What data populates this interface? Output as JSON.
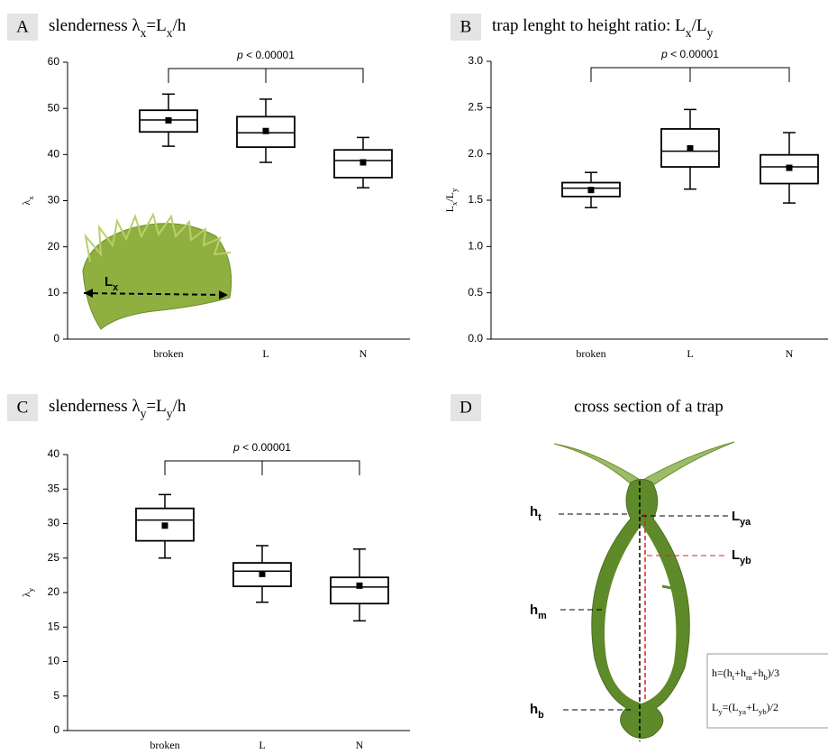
{
  "chart_data": [
    {
      "type": "box",
      "panel_label": "A",
      "title": [
        {
          "text": "slenderness λ"
        },
        {
          "text": "x",
          "sub": true
        },
        {
          "text": "=L"
        },
        {
          "text": "x",
          "sub": true
        },
        {
          "text": "/h"
        }
      ],
      "y_label": [
        {
          "text": "λ"
        },
        {
          "text": "x",
          "sub": true
        }
      ],
      "annotation": [
        {
          "text": "p",
          "italic": true
        },
        {
          "text": " < 0.00001"
        }
      ],
      "inset_label": [
        {
          "text": "L"
        },
        {
          "text": "x",
          "sub": true
        }
      ],
      "categories": [
        "broken",
        "L",
        "N"
      ],
      "boxes": [
        {
          "whisker_low": 41.8,
          "q1": 44.9,
          "median": 47.5,
          "q3": 49.6,
          "whisker_high": 53.1,
          "mean": 47.4
        },
        {
          "whisker_low": 38.3,
          "q1": 41.6,
          "median": 44.7,
          "q3": 48.2,
          "whisker_high": 52,
          "mean": 45.1
        },
        {
          "whisker_low": 32.8,
          "q1": 35,
          "median": 38.7,
          "q3": 41,
          "whisker_high": 43.7,
          "mean": 38.3
        }
      ],
      "color": "#000000",
      "ylim": [
        0,
        60
      ],
      "yticks": [
        0,
        10,
        20,
        30,
        40,
        50,
        60
      ]
    },
    {
      "type": "box",
      "panel_label": "B",
      "title": [
        {
          "text": "trap lenght to height ratio: L"
        },
        {
          "text": "x",
          "sub": true
        },
        {
          "text": "/L"
        },
        {
          "text": "y",
          "sub": true
        }
      ],
      "y_label": [
        {
          "text": "L"
        },
        {
          "text": "x",
          "sub": true
        },
        {
          "text": "/L"
        },
        {
          "text": "y",
          "sub": true
        }
      ],
      "annotation": [
        {
          "text": "p",
          "italic": true
        },
        {
          "text": " < 0.00001"
        }
      ],
      "categories": [
        "broken",
        "L",
        "N"
      ],
      "boxes": [
        {
          "whisker_low": 1.42,
          "q1": 1.54,
          "median": 1.63,
          "q3": 1.69,
          "whisker_high": 1.8,
          "mean": 1.61
        },
        {
          "whisker_low": 1.62,
          "q1": 1.86,
          "median": 2.03,
          "q3": 2.27,
          "whisker_high": 2.48,
          "mean": 2.06
        },
        {
          "whisker_low": 1.47,
          "q1": 1.68,
          "median": 1.86,
          "q3": 1.99,
          "whisker_high": 2.23,
          "mean": 1.85
        }
      ],
      "color": "#000000",
      "ylim": [
        0,
        3
      ],
      "yticks": [
        {
          "value": 0,
          "label": "0.0"
        },
        0.5,
        {
          "value": 1,
          "label": "1.0"
        },
        1.5,
        {
          "value": 2,
          "label": "2.0"
        },
        2.5,
        {
          "value": 3,
          "label": "3.0"
        }
      ]
    },
    {
      "type": "box",
      "panel_label": "C",
      "title": [
        {
          "text": "slenderness λ"
        },
        {
          "text": "y",
          "sub": true
        },
        {
          "text": "=L"
        },
        {
          "text": "y",
          "sub": true
        },
        {
          "text": "/h"
        }
      ],
      "y_label": [
        {
          "text": "λ"
        },
        {
          "text": "y",
          "sub": true
        }
      ],
      "annotation": [
        {
          "text": "p",
          "italic": true
        },
        {
          "text": " < 0.00001"
        }
      ],
      "categories": [
        "broken",
        "L",
        "N"
      ],
      "boxes": [
        {
          "whisker_low": 25,
          "q1": 27.5,
          "median": 30.5,
          "q3": 32.2,
          "whisker_high": 34.2,
          "mean": 29.7
        },
        {
          "whisker_low": 18.6,
          "q1": 20.9,
          "median": 23.1,
          "q3": 24.3,
          "whisker_high": 26.8,
          "mean": 22.7
        },
        {
          "whisker_low": 15.9,
          "q1": 18.4,
          "median": 20.8,
          "q3": 22.2,
          "whisker_high": 26.3,
          "mean": 21
        }
      ],
      "color": "#000000",
      "ylim": [
        0,
        40
      ],
      "yticks": [
        0,
        5,
        10,
        15,
        20,
        25,
        30,
        35,
        40
      ]
    }
  ],
  "panel_d": {
    "panel_label": "D",
    "title": "cross section of a trap",
    "labels": [
      [
        {
          "text": "h"
        },
        {
          "text": "t",
          "sub": true
        }
      ],
      [
        {
          "text": "L"
        },
        {
          "text": "ya",
          "sub": true
        }
      ],
      [
        {
          "text": "L"
        },
        {
          "text": "yb",
          "sub": true
        }
      ],
      [
        {
          "text": "h"
        },
        {
          "text": "m",
          "sub": true
        }
      ],
      [
        {
          "text": "h"
        },
        {
          "text": "b",
          "sub": true
        }
      ]
    ],
    "formulas": [
      [
        {
          "text": "h=(h"
        },
        {
          "text": "t",
          "sub": true
        },
        {
          "text": "+h"
        },
        {
          "text": "m",
          "sub": true
        },
        {
          "text": "+h"
        },
        {
          "text": "b",
          "sub": true
        },
        {
          "text": ")/3"
        }
      ],
      [
        {
          "text": "L"
        },
        {
          "text": "y",
          "sub": true
        },
        {
          "text": "=(L"
        },
        {
          "text": "ya",
          "sub": true
        },
        {
          "text": "+L"
        },
        {
          "text": "yb",
          "sub": true
        },
        {
          "text": ")/2"
        }
      ]
    ]
  }
}
